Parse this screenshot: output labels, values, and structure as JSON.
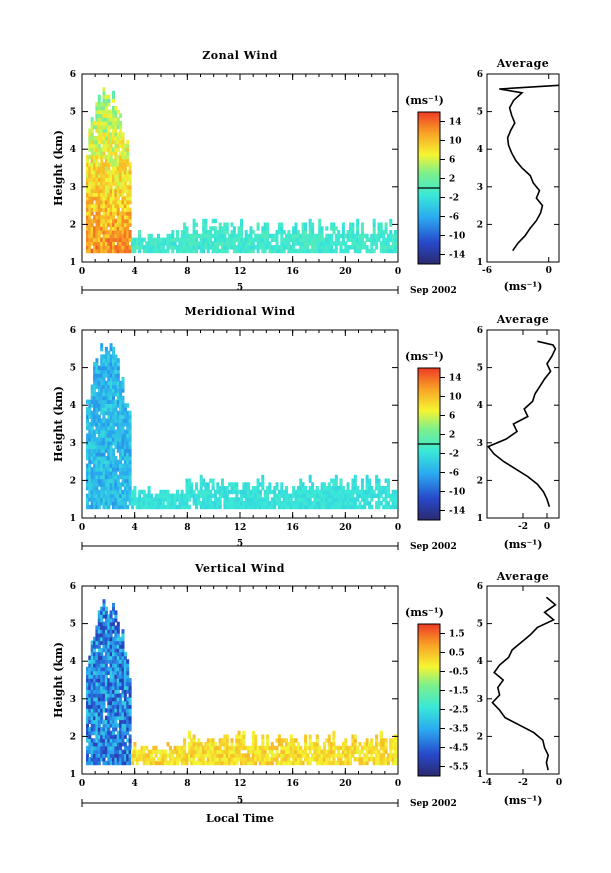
{
  "figure": {
    "xlabel": "Local Time",
    "date_label": "Sep 2002",
    "day_label": "5",
    "unit_label": "(ms⁻¹)"
  },
  "chart_data": [
    {
      "type": "heatmap",
      "title": "Zonal Wind",
      "xlabel": "",
      "ylabel": "Height (km)",
      "xlim": [
        0,
        24
      ],
      "ylim": [
        1,
        6
      ],
      "xticks": [
        "0",
        "4",
        "8",
        "12",
        "16",
        "20",
        "0"
      ],
      "yticks": [
        "1",
        "2",
        "3",
        "4",
        "5",
        "6"
      ],
      "colorbar": {
        "label": "(ms⁻¹)",
        "ticks": [
          "14",
          "10",
          "6",
          "2",
          "-2",
          "-6",
          "-10",
          "-14"
        ],
        "range": [
          -16,
          16
        ],
        "zero_line": 0
      },
      "profile": {
        "title": "Average",
        "xlabel": "(ms⁻¹)",
        "xlim": [
          -6,
          1
        ],
        "xticks": [
          "-6",
          "0"
        ],
        "heights": [
          1.3,
          1.5,
          1.7,
          1.9,
          2.1,
          2.3,
          2.5,
          2.7,
          2.9,
          3.1,
          3.3,
          3.5,
          3.7,
          3.9,
          4.1,
          4.3,
          4.5,
          4.7,
          4.9,
          5.1,
          5.3,
          5.5,
          5.6,
          5.7
        ],
        "values": [
          -3.5,
          -3.0,
          -2.3,
          -1.8,
          -1.2,
          -0.8,
          -0.6,
          -1.2,
          -0.9,
          -1.5,
          -1.8,
          -2.6,
          -3.2,
          -3.6,
          -3.9,
          -4.0,
          -3.7,
          -3.3,
          -3.6,
          -3.8,
          -3.4,
          -2.6,
          -4.8,
          1.0
        ]
      }
    },
    {
      "type": "heatmap",
      "title": "Meridional Wind",
      "xlabel": "",
      "ylabel": "Height (km)",
      "xlim": [
        0,
        24
      ],
      "ylim": [
        1,
        6
      ],
      "xticks": [
        "0",
        "4",
        "8",
        "12",
        "16",
        "20",
        "0"
      ],
      "yticks": [
        "1",
        "2",
        "3",
        "4",
        "5",
        "6"
      ],
      "colorbar": {
        "label": "(ms⁻¹)",
        "ticks": [
          "14",
          "10",
          "6",
          "2",
          "-2",
          "-6",
          "-10",
          "-14"
        ],
        "range": [
          -16,
          16
        ],
        "zero_line": 0
      },
      "profile": {
        "title": "Average",
        "xlabel": "(ms⁻¹)",
        "xlim": [
          -5,
          1
        ],
        "xticks": [
          "-2",
          "0"
        ],
        "heights": [
          1.3,
          1.5,
          1.7,
          1.9,
          2.1,
          2.3,
          2.5,
          2.7,
          2.9,
          3.1,
          3.3,
          3.5,
          3.7,
          3.9,
          4.1,
          4.3,
          4.5,
          4.7,
          4.9,
          5.1,
          5.3,
          5.5,
          5.6,
          5.7
        ],
        "values": [
          0.2,
          0.0,
          -0.3,
          -0.8,
          -1.6,
          -2.6,
          -3.6,
          -4.4,
          -4.9,
          -3.4,
          -2.5,
          -2.8,
          -1.6,
          -1.9,
          -1.2,
          -1.0,
          -0.6,
          -0.2,
          0.3,
          0.0,
          0.4,
          0.7,
          0.5,
          -0.8
        ]
      }
    },
    {
      "type": "heatmap",
      "title": "Vertical Wind",
      "xlabel": "Local Time",
      "ylabel": "Height (km)",
      "xlim": [
        0,
        24
      ],
      "ylim": [
        1,
        6
      ],
      "xticks": [
        "0",
        "4",
        "8",
        "12",
        "16",
        "20",
        "0"
      ],
      "yticks": [
        "1",
        "2",
        "3",
        "4",
        "5",
        "6"
      ],
      "colorbar": {
        "label": "(ms⁻¹)",
        "ticks": [
          "1.5",
          "0.5",
          "-0.5",
          "-1.5",
          "-2.5",
          "-3.5",
          "-4.5",
          "-5.5"
        ],
        "range": [
          -6,
          2
        ]
      },
      "profile": {
        "title": "Average",
        "xlabel": "(ms⁻¹)",
        "xlim": [
          -4,
          0
        ],
        "xticks": [
          "-4",
          "-2",
          "0"
        ],
        "heights": [
          1.1,
          1.3,
          1.5,
          1.7,
          1.9,
          2.1,
          2.3,
          2.5,
          2.7,
          2.9,
          3.1,
          3.3,
          3.5,
          3.7,
          3.9,
          4.1,
          4.3,
          4.5,
          4.7,
          4.9,
          5.1,
          5.3,
          5.5,
          5.7
        ],
        "values": [
          -0.6,
          -0.7,
          -0.6,
          -0.8,
          -0.9,
          -1.4,
          -2.2,
          -3.0,
          -3.3,
          -3.7,
          -3.3,
          -3.4,
          -3.1,
          -3.6,
          -3.3,
          -2.8,
          -2.6,
          -2.1,
          -1.6,
          -1.2,
          -0.3,
          -0.8,
          -0.2,
          -0.7
        ]
      }
    }
  ]
}
